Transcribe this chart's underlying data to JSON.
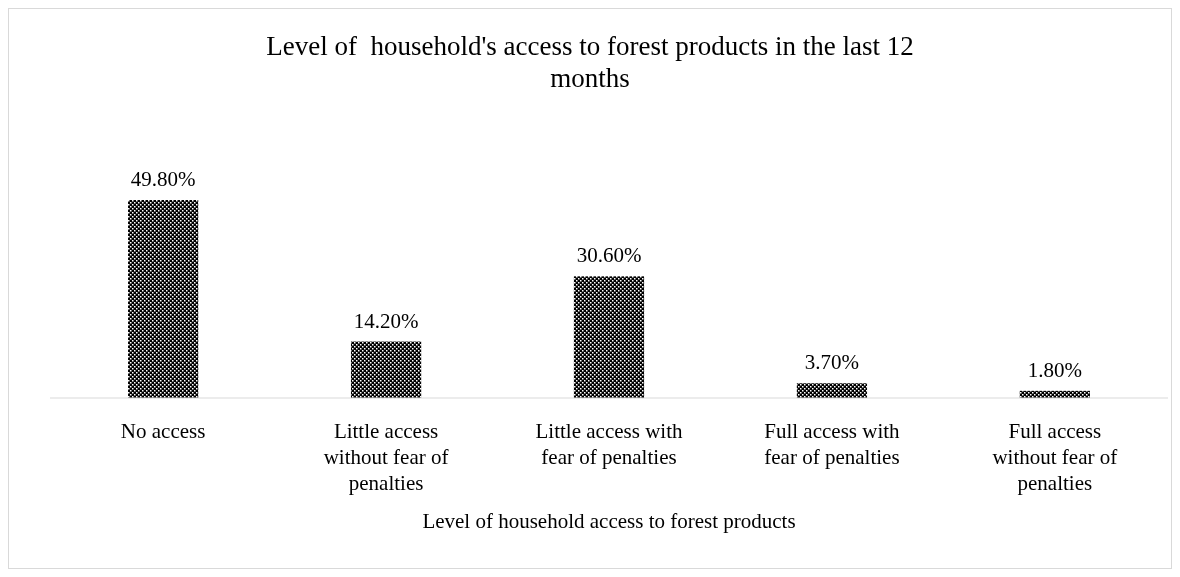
{
  "chart_data": {
    "type": "bar",
    "title": "Level of  household's access to forest products in the last 12 months",
    "xlabel": "Level of household access to forest products",
    "categories": [
      "No access",
      "Little access without fear of penalties",
      "Little access with fear of penalties",
      "Full access with fear of penalties",
      "Full access without fear of penalties"
    ],
    "values": [
      49.8,
      14.2,
      30.6,
      3.7,
      1.8
    ],
    "value_labels": [
      "49.80%",
      "14.20%",
      "30.60%",
      "3.70%",
      "1.80%"
    ],
    "color": "#000000"
  }
}
